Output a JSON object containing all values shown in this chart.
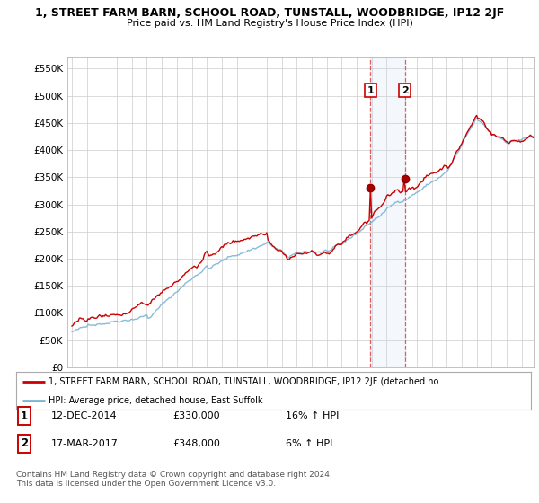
{
  "title": "1, STREET FARM BARN, SCHOOL ROAD, TUNSTALL, WOODBRIDGE, IP12 2JF",
  "subtitle": "Price paid vs. HM Land Registry's House Price Index (HPI)",
  "ylim": [
    0,
    570000
  ],
  "yticks": [
    0,
    50000,
    100000,
    150000,
    200000,
    250000,
    300000,
    350000,
    400000,
    450000,
    500000,
    550000
  ],
  "ytick_labels": [
    "£0",
    "£50K",
    "£100K",
    "£150K",
    "£200K",
    "£250K",
    "£300K",
    "£350K",
    "£400K",
    "£450K",
    "£500K",
    "£550K"
  ],
  "background_color": "#ffffff",
  "plot_bg_color": "#ffffff",
  "grid_color": "#cccccc",
  "sale_color": "#cc0000",
  "hpi_line_color": "#7ab4d4",
  "legend_property": "1, STREET FARM BARN, SCHOOL ROAD, TUNSTALL, WOODBRIDGE, IP12 2JF (detached ho",
  "legend_hpi": "HPI: Average price, detached house, East Suffolk",
  "sale1_label": "1",
  "sale1_date": "12-DEC-2014",
  "sale1_price": "£330,000",
  "sale1_hpi": "16% ↑ HPI",
  "sale2_label": "2",
  "sale2_date": "17-MAR-2017",
  "sale2_price": "£348,000",
  "sale2_hpi": "6% ↑ HPI",
  "footer": "Contains HM Land Registry data © Crown copyright and database right 2024.\nThis data is licensed under the Open Government Licence v3.0.",
  "sale1_x": 2014.917,
  "sale1_y": 330000,
  "sale2_x": 2017.208,
  "sale2_y": 348000,
  "xlim_left": 1994.7,
  "xlim_right": 2025.8
}
